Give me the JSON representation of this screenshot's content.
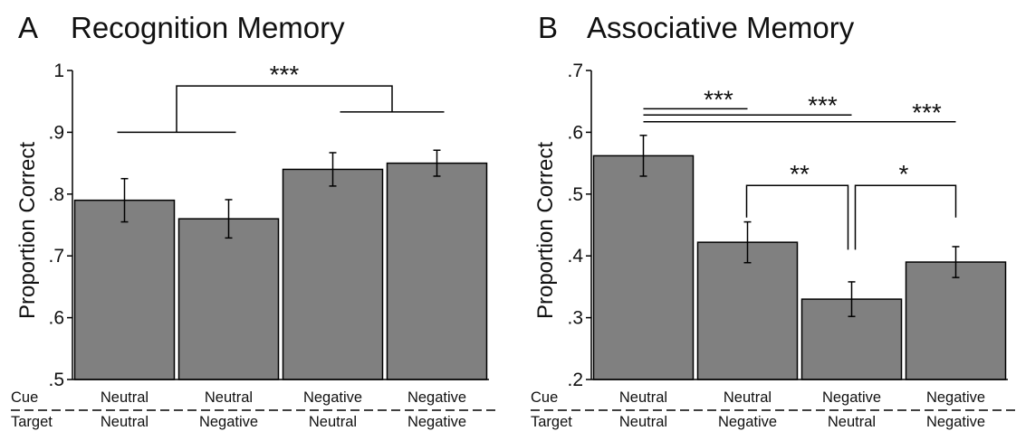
{
  "figure": {
    "panel_a": {
      "letter": "A",
      "title": "Recognition Memory"
    },
    "panel_b": {
      "letter": "B",
      "title": "Associative Memory"
    }
  },
  "colors": {
    "bar": "#808080",
    "stroke": "#000000"
  },
  "chart_data": [
    {
      "type": "bar",
      "title": "Recognition Memory",
      "xlabel": "",
      "ylabel": "Proportion Correct",
      "ylim": [
        0.5,
        1.0
      ],
      "yticks": [
        0.5,
        0.6,
        0.7,
        0.8,
        0.9,
        1.0
      ],
      "ytick_labels": [
        ".5",
        ".6",
        ".7",
        ".8",
        ".9",
        "1"
      ],
      "row_labels": [
        "Cue",
        "Target"
      ],
      "categories": [
        {
          "cue": "Neutral",
          "target": "Neutral"
        },
        {
          "cue": "Neutral",
          "target": "Negative"
        },
        {
          "cue": "Negative",
          "target": "Neutral"
        },
        {
          "cue": "Negative",
          "target": "Negative"
        }
      ],
      "values": [
        0.79,
        0.76,
        0.84,
        0.85
      ],
      "error": [
        0.035,
        0.031,
        0.027,
        0.021
      ],
      "grid": false,
      "annotations": [
        {
          "type": "group_bracket",
          "left_group": [
            0,
            1
          ],
          "right_group": [
            2,
            3
          ],
          "level": 0.975,
          "group_levels": [
            0.9,
            0.933
          ],
          "label": "***"
        }
      ]
    },
    {
      "type": "bar",
      "title": "Associative Memory",
      "xlabel": "",
      "ylabel": "Proportion Correct",
      "ylim": [
        0.2,
        0.7
      ],
      "yticks": [
        0.2,
        0.3,
        0.4,
        0.5,
        0.6,
        0.7
      ],
      "ytick_labels": [
        ".2",
        ".3",
        ".4",
        ".5",
        ".6",
        ".7"
      ],
      "row_labels": [
        "Cue",
        "Target"
      ],
      "categories": [
        {
          "cue": "Neutral",
          "target": "Neutral"
        },
        {
          "cue": "Neutral",
          "target": "Negative"
        },
        {
          "cue": "Negative",
          "target": "Neutral"
        },
        {
          "cue": "Negative",
          "target": "Negative"
        }
      ],
      "values": [
        0.562,
        0.422,
        0.33,
        0.39
      ],
      "error": [
        0.033,
        0.033,
        0.028,
        0.025
      ],
      "grid": false,
      "annotations": [
        {
          "type": "line",
          "from": 0,
          "to": 1,
          "level": 0.638,
          "label": "***"
        },
        {
          "type": "line",
          "from": 0,
          "to": 2,
          "level": 0.628,
          "label": "***"
        },
        {
          "type": "line",
          "from": 0,
          "to": 3,
          "level": 0.617,
          "label": "***"
        },
        {
          "type": "bracket",
          "from": 1,
          "to": 2,
          "level": 0.514,
          "down_to": 0.41,
          "label": "**"
        },
        {
          "type": "bracket",
          "from": 2,
          "to": 3,
          "level": 0.514,
          "down_to": 0.41,
          "label": "*"
        }
      ]
    }
  ]
}
